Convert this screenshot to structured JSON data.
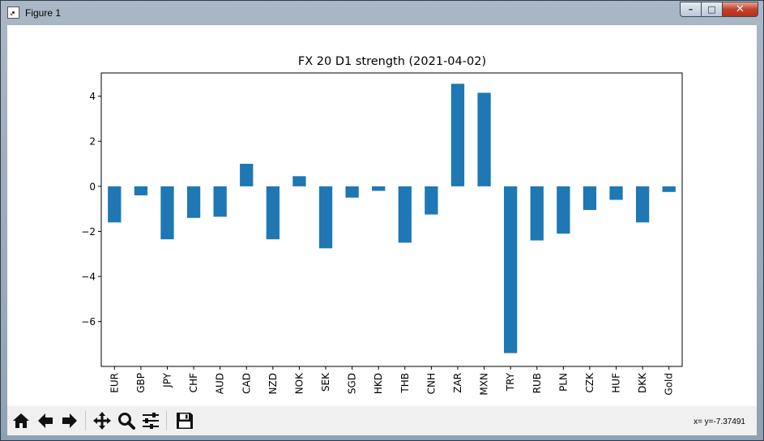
{
  "window": {
    "title": "Figure 1",
    "minimize_glyph": "–",
    "maximize_glyph": "□",
    "close_glyph": "✕"
  },
  "toolbar": {
    "buttons": [
      "home-icon",
      "back-arrow-icon",
      "forward-arrow-icon",
      "pan-icon",
      "zoom-icon",
      "subplots-icon",
      "save-icon"
    ],
    "coords_text": "x= y=-7.37491"
  },
  "chart_data": {
    "type": "bar",
    "title": "FX 20 D1 strength (2021-04-02)",
    "xlabel": "",
    "ylabel": "",
    "categories": [
      "EUR",
      "GBP",
      "JPY",
      "CHF",
      "AUD",
      "CAD",
      "NZD",
      "NOK",
      "SEK",
      "SGD",
      "HKD",
      "THB",
      "CNH",
      "ZAR",
      "MXN",
      "TRY",
      "RUB",
      "PLN",
      "CZK",
      "HUF",
      "DKK",
      "Gold"
    ],
    "values": [
      -1.6,
      -0.4,
      -2.35,
      -1.4,
      -1.35,
      1.0,
      -2.35,
      0.45,
      -2.75,
      -0.5,
      -0.2,
      -2.5,
      -1.25,
      4.55,
      4.15,
      -7.4,
      -2.4,
      -2.1,
      -1.05,
      -0.6,
      -1.6,
      -0.25
    ],
    "yticks": [
      4,
      2,
      0,
      -2,
      -4,
      -6
    ],
    "ytick_labels": [
      "4",
      "2",
      "0",
      "−2",
      "−4",
      "−6"
    ],
    "ylim": [
      -7.99,
      5.03
    ],
    "bar_color": "#1f77b4",
    "grid": false,
    "legend": "none"
  }
}
